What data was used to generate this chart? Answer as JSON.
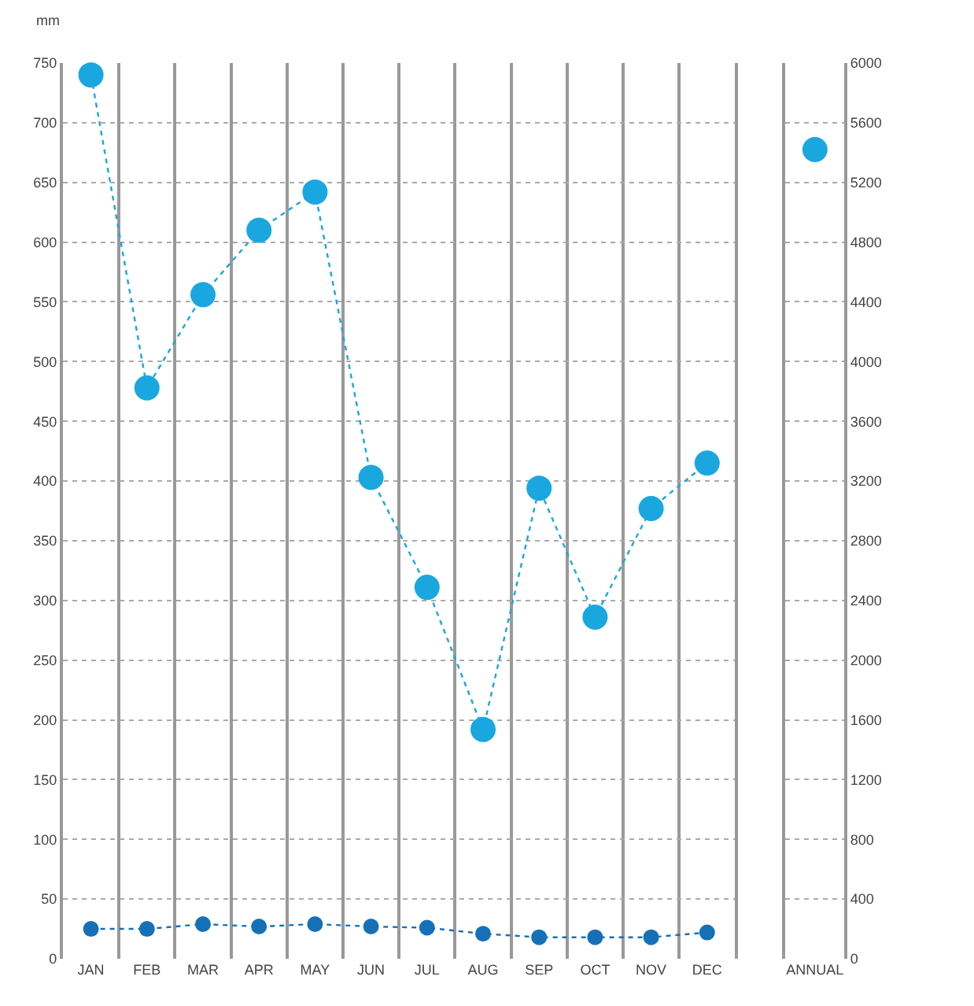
{
  "chart_data": [
    {
      "type": "line",
      "ylabel": "mm",
      "categories": [
        "JAN",
        "FEB",
        "MAR",
        "APR",
        "MAY",
        "JUN",
        "JUL",
        "AUG",
        "SEP",
        "OCT",
        "NOV",
        "DEC"
      ],
      "series": [
        {
          "color": "#1aa7e0",
          "values": [
            740,
            478,
            556,
            610,
            642,
            403,
            311,
            192,
            394,
            286,
            377,
            415
          ]
        },
        {
          "color": "#1570b8",
          "values": [
            25,
            25,
            29,
            27,
            29,
            27,
            26,
            21,
            18,
            18,
            18,
            22
          ]
        }
      ],
      "ylim": [
        0,
        750
      ],
      "yticks": [
        0,
        50,
        100,
        150,
        200,
        250,
        300,
        350,
        400,
        450,
        500,
        550,
        600,
        650,
        700,
        750
      ],
      "grid": true,
      "marker": "circle",
      "line_style": "dotted"
    },
    {
      "type": "scatter",
      "categories": [
        "ANNUAL"
      ],
      "series": [
        {
          "color": "#1aa7e0",
          "values": [
            5420
          ]
        }
      ],
      "ylim": [
        0,
        6000
      ],
      "yticks": [
        0,
        400,
        800,
        1200,
        1600,
        2000,
        2400,
        2800,
        3200,
        3600,
        4000,
        4400,
        4800,
        5200,
        5600,
        6000
      ],
      "grid": true,
      "marker": "circle"
    }
  ]
}
